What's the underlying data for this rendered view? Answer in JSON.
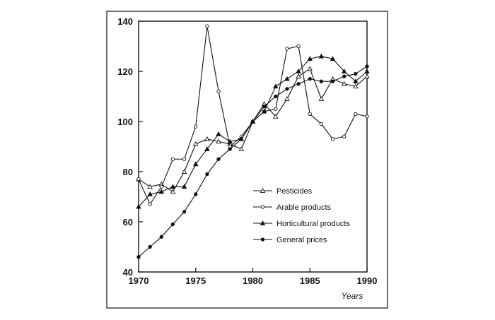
{
  "chart_data": {
    "type": "line",
    "title": "",
    "xlabel": "Years",
    "ylabel": "",
    "xlim": [
      1970,
      1990
    ],
    "ylim": [
      40,
      140
    ],
    "x_ticks": [
      1970,
      1975,
      1980,
      1985,
      1990
    ],
    "y_ticks": [
      40,
      60,
      80,
      100,
      120,
      140
    ],
    "legend_position": "center-right",
    "grid": false,
    "x": [
      1970,
      1971,
      1972,
      1973,
      1974,
      1975,
      1976,
      1977,
      1978,
      1979,
      1980,
      1981,
      1982,
      1983,
      1984,
      1985,
      1986,
      1987,
      1988,
      1989,
      1990
    ],
    "series": [
      {
        "name": "Pesticides",
        "marker": "triangle-open",
        "values": [
          77,
          74,
          75,
          72,
          80,
          91,
          93,
          92,
          91,
          89,
          100,
          107,
          102,
          109,
          118,
          121,
          109,
          117,
          115,
          114,
          118
        ]
      },
      {
        "name": "Arable products",
        "marker": "circle-open",
        "values": [
          77,
          67,
          74,
          85,
          85,
          98,
          138,
          112,
          90,
          94,
          100,
          104,
          105,
          129,
          130,
          103,
          99,
          93,
          94,
          103,
          102
        ]
      },
      {
        "name": "Horticultural products",
        "marker": "triangle-filled",
        "values": [
          66,
          71,
          72,
          74,
          74,
          83,
          89,
          95,
          92,
          93,
          100,
          104,
          114,
          117,
          120,
          125,
          126,
          125,
          120,
          116,
          120
        ]
      },
      {
        "name": "General prices",
        "marker": "circle-filled",
        "values": [
          46,
          50,
          54,
          59,
          64,
          71,
          79,
          85,
          89,
          93,
          100,
          106,
          110,
          113,
          115,
          117,
          116,
          116,
          118,
          119,
          122
        ]
      }
    ]
  }
}
